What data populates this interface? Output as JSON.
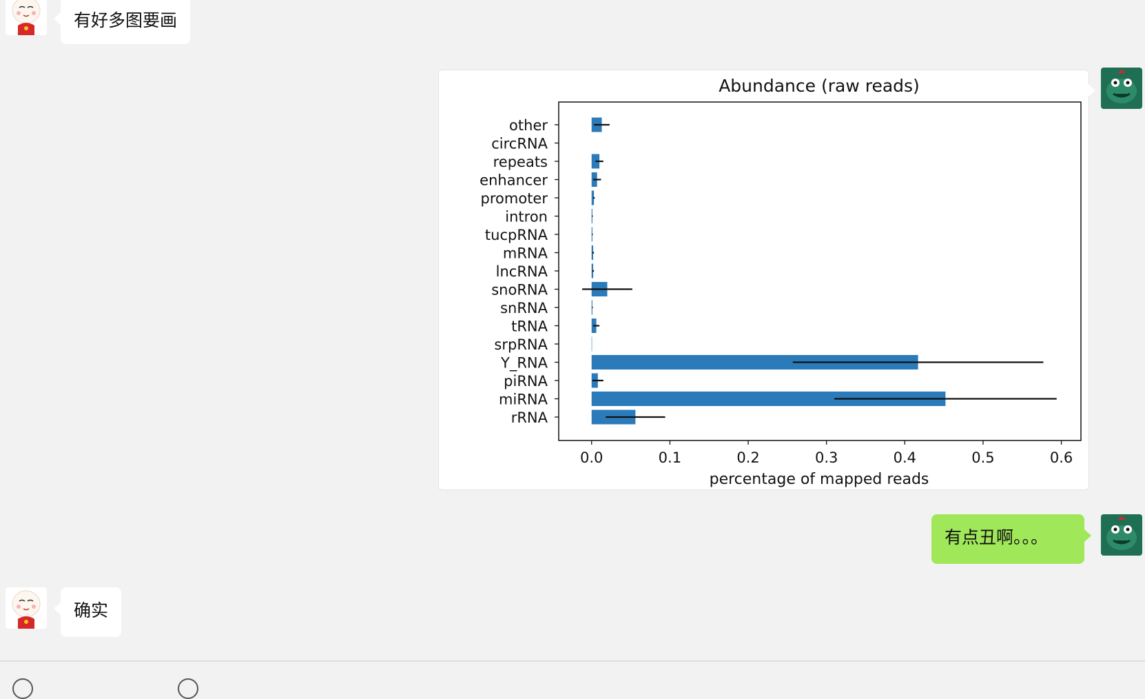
{
  "chat": {
    "messages": [
      {
        "sender": "friend",
        "text": "有好多图要画"
      },
      {
        "sender": "me",
        "type": "image"
      },
      {
        "sender": "me",
        "text": "有点丑啊。。。"
      },
      {
        "sender": "friend",
        "text": "确实"
      }
    ]
  },
  "colors": {
    "background": "#f2f2f2",
    "friend_bubble": "#ffffff",
    "my_bubble": "#a0e75a",
    "bar": "#2b7bba",
    "avatar_right": "#1f6f55"
  },
  "icons": {
    "friend_avatar": "cartoon-face-avatar-icon",
    "my_avatar": "frog-avatar-icon",
    "toolbar": [
      "emoji-icon",
      "scissors-icon",
      "chat-history-icon",
      "paperclip-icon"
    ]
  },
  "chart_data": {
    "type": "bar",
    "orientation": "horizontal",
    "title": "Abundance (raw reads)",
    "xlabel": "percentage of mapped reads",
    "ylabel": "",
    "xlim": [
      -0.042,
      0.625
    ],
    "xticks": [
      0.0,
      0.1,
      0.2,
      0.3,
      0.4,
      0.5,
      0.6
    ],
    "xtick_labels": [
      "0.0",
      "0.1",
      "0.2",
      "0.3",
      "0.4",
      "0.5",
      "0.6"
    ],
    "grid": false,
    "categories": [
      "other",
      "circRNA",
      "repeats",
      "enhancer",
      "promoter",
      "intron",
      "tucpRNA",
      "mRNA",
      "lncRNA",
      "snoRNA",
      "snRNA",
      "tRNA",
      "srpRNA",
      "Y_RNA",
      "piRNA",
      "miRNA",
      "rRNA"
    ],
    "values": [
      0.013,
      0.0,
      0.01,
      0.007,
      0.003,
      0.001,
      0.001,
      0.002,
      0.002,
      0.02,
      0.001,
      0.006,
      0.0005,
      0.417,
      0.008,
      0.452,
      0.056
    ],
    "errors": [
      0.01,
      0.0,
      0.005,
      0.005,
      0.001,
      0.0005,
      0.0005,
      0.001,
      0.001,
      0.032,
      0.0005,
      0.004,
      0.0,
      0.16,
      0.007,
      0.142,
      0.038
    ]
  }
}
